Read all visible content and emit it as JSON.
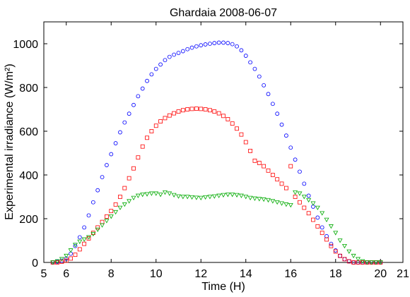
{
  "chart_data": {
    "type": "scatter",
    "title": "Ghardaia 2008-06-07",
    "xlabel": "Time (H)",
    "ylabel": "Experimental irradiance (W/m²)",
    "xlim": [
      5,
      21
    ],
    "ylim": [
      0,
      1100
    ],
    "xticks": [
      5,
      6,
      8,
      10,
      12,
      14,
      16,
      18,
      20,
      21
    ],
    "yticks": [
      0,
      200,
      400,
      600,
      800,
      1000
    ],
    "series": [
      {
        "color": "#0000ff",
        "marker": "circle",
        "x": [
          5.4,
          5.6,
          5.8,
          6.0,
          6.2,
          6.4,
          6.6,
          6.8,
          7.0,
          7.2,
          7.4,
          7.6,
          7.8,
          8.0,
          8.2,
          8.4,
          8.6,
          8.8,
          9.0,
          9.2,
          9.4,
          9.6,
          9.8,
          10.0,
          10.2,
          10.4,
          10.6,
          10.8,
          11.0,
          11.2,
          11.4,
          11.6,
          11.8,
          12.0,
          12.2,
          12.4,
          12.6,
          12.8,
          13.0,
          13.2,
          13.4,
          13.6,
          13.8,
          14.0,
          14.2,
          14.4,
          14.6,
          14.8,
          15.0,
          15.2,
          15.4,
          15.6,
          15.8,
          16.0,
          16.2,
          16.4,
          16.6,
          16.8,
          17.0,
          17.2,
          17.4,
          17.6,
          17.8,
          18.0,
          18.2,
          18.4,
          18.6,
          18.8,
          19.0,
          19.2,
          19.4,
          19.6,
          19.8,
          20.0
        ],
        "y": [
          0,
          3,
          8,
          18,
          40,
          75,
          115,
          160,
          215,
          275,
          330,
          390,
          445,
          495,
          545,
          595,
          640,
          680,
          720,
          760,
          795,
          830,
          860,
          885,
          905,
          925,
          940,
          950,
          958,
          966,
          975,
          982,
          988,
          993,
          997,
          1000,
          1003,
          1005,
          1005,
          1003,
          998,
          988,
          970,
          945,
          915,
          885,
          850,
          810,
          770,
          725,
          680,
          630,
          580,
          525,
          470,
          415,
          360,
          305,
          255,
          205,
          160,
          120,
          85,
          55,
          30,
          15,
          5,
          0,
          0,
          0,
          0,
          0,
          0,
          0
        ]
      },
      {
        "color": "#ff0000",
        "marker": "square",
        "x": [
          5.4,
          5.6,
          5.8,
          6.0,
          6.2,
          6.4,
          6.6,
          6.8,
          7.0,
          7.2,
          7.4,
          7.6,
          7.8,
          8.0,
          8.2,
          8.4,
          8.6,
          8.8,
          9.0,
          9.2,
          9.4,
          9.6,
          9.8,
          10.0,
          10.2,
          10.4,
          10.6,
          10.8,
          11.0,
          11.2,
          11.4,
          11.6,
          11.8,
          12.0,
          12.2,
          12.4,
          12.6,
          12.8,
          13.0,
          13.2,
          13.4,
          13.6,
          13.8,
          14.0,
          14.2,
          14.4,
          14.6,
          14.8,
          15.0,
          15.2,
          15.4,
          15.6,
          15.8,
          16.0,
          16.2,
          16.4,
          16.6,
          16.8,
          17.0,
          17.2,
          17.4,
          17.6,
          17.8,
          18.0,
          18.2,
          18.4,
          18.6,
          18.8,
          19.0,
          19.2,
          19.4,
          19.6,
          19.8,
          20.0
        ],
        "y": [
          0,
          0,
          3,
          8,
          18,
          35,
          60,
          85,
          110,
          135,
          160,
          185,
          210,
          235,
          265,
          300,
          340,
          385,
          430,
          480,
          530,
          570,
          600,
          625,
          645,
          660,
          672,
          682,
          690,
          696,
          700,
          702,
          703,
          702,
          700,
          696,
          690,
          682,
          670,
          655,
          635,
          612,
          585,
          550,
          510,
          465,
          455,
          440,
          420,
          400,
          380,
          360,
          340,
          440,
          300,
          275,
          250,
          225,
          195,
          165,
          135,
          105,
          75,
          50,
          30,
          15,
          5,
          0,
          0,
          0,
          0,
          0,
          0,
          0
        ]
      },
      {
        "color": "#00aa00",
        "marker": "triangle",
        "x": [
          5.4,
          5.6,
          5.8,
          6.0,
          6.2,
          6.4,
          6.6,
          6.8,
          7.0,
          7.2,
          7.4,
          7.6,
          7.8,
          8.0,
          8.2,
          8.4,
          8.6,
          8.8,
          9.0,
          9.2,
          9.4,
          9.6,
          9.8,
          10.0,
          10.2,
          10.4,
          10.6,
          10.8,
          11.0,
          11.2,
          11.4,
          11.6,
          11.8,
          12.0,
          12.2,
          12.4,
          12.6,
          12.8,
          13.0,
          13.2,
          13.4,
          13.6,
          13.8,
          14.0,
          14.2,
          14.4,
          14.6,
          14.8,
          15.0,
          15.2,
          15.4,
          15.6,
          15.8,
          16.0,
          16.2,
          16.4,
          16.6,
          16.8,
          17.0,
          17.2,
          17.4,
          17.6,
          17.8,
          18.0,
          18.2,
          18.4,
          18.6,
          18.8,
          19.0,
          19.2,
          19.4,
          19.6,
          19.8,
          20.0
        ],
        "y": [
          0,
          5,
          15,
          30,
          55,
          80,
          95,
          105,
          115,
          130,
          150,
          170,
          190,
          210,
          230,
          250,
          265,
          280,
          295,
          305,
          310,
          312,
          315,
          315,
          310,
          320,
          315,
          308,
          302,
          300,
          300,
          298,
          296,
          295,
          298,
          300,
          302,
          305,
          308,
          310,
          310,
          308,
          305,
          300,
          295,
          292,
          290,
          288,
          285,
          280,
          275,
          270,
          265,
          262,
          320,
          315,
          300,
          285,
          270,
          250,
          225,
          195,
          165,
          135,
          100,
          75,
          50,
          30,
          15,
          5,
          0,
          0,
          0,
          0
        ]
      }
    ]
  }
}
